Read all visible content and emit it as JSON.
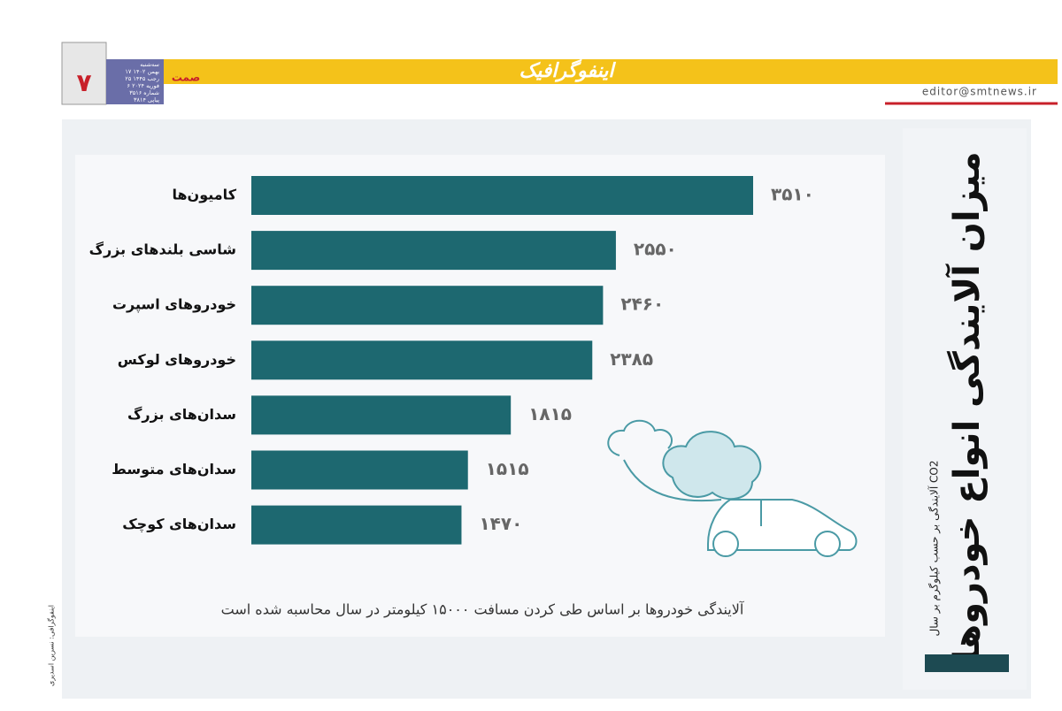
{
  "header": {
    "section": "اینفوگرافیک",
    "email": "editor@smtnews.ir",
    "page_number": "۷",
    "logo": "صمت",
    "date_lines": [
      "سه‌شنبه",
      "۱۷ بهمن ۱۴۰۲",
      "۲۵ رجب ۱۴۴۵",
      "۶ فوریه ۲۰۲۴",
      "شماره ۳۵۱۶",
      "پیاپی ۳۸۱۴"
    ]
  },
  "credit": "اینفوگرافی: نسرین اسدیری",
  "chart_data": {
    "type": "bar",
    "orientation": "horizontal",
    "title": "میزان آلایندگی انواع خودروها",
    "subtitle": "آلایندگی بر حسب کیلوگرم بر سال CO2",
    "note": "آلایندگی خودروها بر اساس طی کردن مسافت ۱۵۰۰۰ کیلومتر در سال محاسبه شده است",
    "categories": [
      "کامیون‌ها",
      "شاسی بلندهای بزرگ",
      "خودروهای اسپرت",
      "خودروهای لوکس",
      "سدان‌های بزرگ",
      "سدان‌های متوسط",
      "سدان‌های کوچک"
    ],
    "values": [
      3510,
      2550,
      2460,
      2385,
      1815,
      1515,
      1470
    ],
    "value_labels": [
      "۳۵۱۰",
      "۲۵۵۰",
      "۲۴۶۰",
      "۲۳۸۵",
      "۱۸۱۵",
      "۱۵۱۵",
      "۱۴۷۰"
    ],
    "color": "#1d6870"
  }
}
